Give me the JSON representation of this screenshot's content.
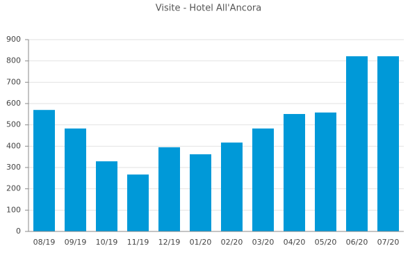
{
  "chart_data": {
    "type": "bar",
    "title": "Visite - Hotel All'Ancora",
    "categories": [
      "08/19",
      "09/19",
      "10/19",
      "11/19",
      "12/19",
      "01/20",
      "02/20",
      "03/20",
      "04/20",
      "05/20",
      "06/20",
      "07/20"
    ],
    "values": [
      570,
      483,
      329,
      267,
      395,
      362,
      417,
      483,
      551,
      558,
      822,
      822
    ],
    "color": "#0099d8",
    "ylim": [
      0,
      900
    ],
    "yticks": [
      0,
      100,
      200,
      300,
      400,
      500,
      600,
      700,
      800,
      900
    ],
    "grid": true
  }
}
